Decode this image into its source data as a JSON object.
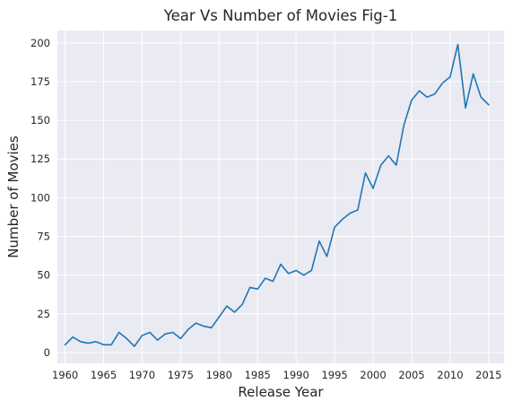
{
  "chart_data": {
    "type": "line",
    "title": "Year Vs Number of Movies Fig-1",
    "xlabel": "Release Year",
    "ylabel": "Number of Movies",
    "xlim": [
      1959,
      2017
    ],
    "ylim": [
      -7,
      208
    ],
    "xticks": [
      1960,
      1965,
      1970,
      1975,
      1980,
      1985,
      1990,
      1995,
      2000,
      2005,
      2010,
      2015
    ],
    "yticks": [
      0,
      25,
      50,
      75,
      100,
      125,
      150,
      175,
      200
    ],
    "grid": true,
    "series": [
      {
        "color": "#1f77b4",
        "x": [
          1960,
          1961,
          1962,
          1963,
          1964,
          1965,
          1966,
          1967,
          1968,
          1969,
          1970,
          1971,
          1972,
          1973,
          1974,
          1975,
          1976,
          1977,
          1978,
          1979,
          1980,
          1981,
          1982,
          1983,
          1984,
          1985,
          1986,
          1987,
          1988,
          1989,
          1990,
          1991,
          1992,
          1993,
          1994,
          1995,
          1996,
          1997,
          1998,
          1999,
          2000,
          2001,
          2002,
          2003,
          2004,
          2005,
          2006,
          2007,
          2008,
          2009,
          2010,
          2011,
          2012,
          2013,
          2014,
          2015
        ],
        "y": [
          5,
          10,
          7,
          6,
          7,
          5,
          5,
          13,
          9,
          4,
          11,
          13,
          8,
          12,
          13,
          9,
          15,
          19,
          17,
          16,
          23,
          30,
          26,
          31,
          42,
          41,
          48,
          46,
          57,
          51,
          53,
          50,
          53,
          72,
          62,
          81,
          86,
          90,
          92,
          116,
          106,
          121,
          127,
          121,
          147,
          163,
          169,
          165,
          167,
          174,
          178,
          199,
          158,
          180,
          165,
          160
        ]
      }
    ]
  }
}
